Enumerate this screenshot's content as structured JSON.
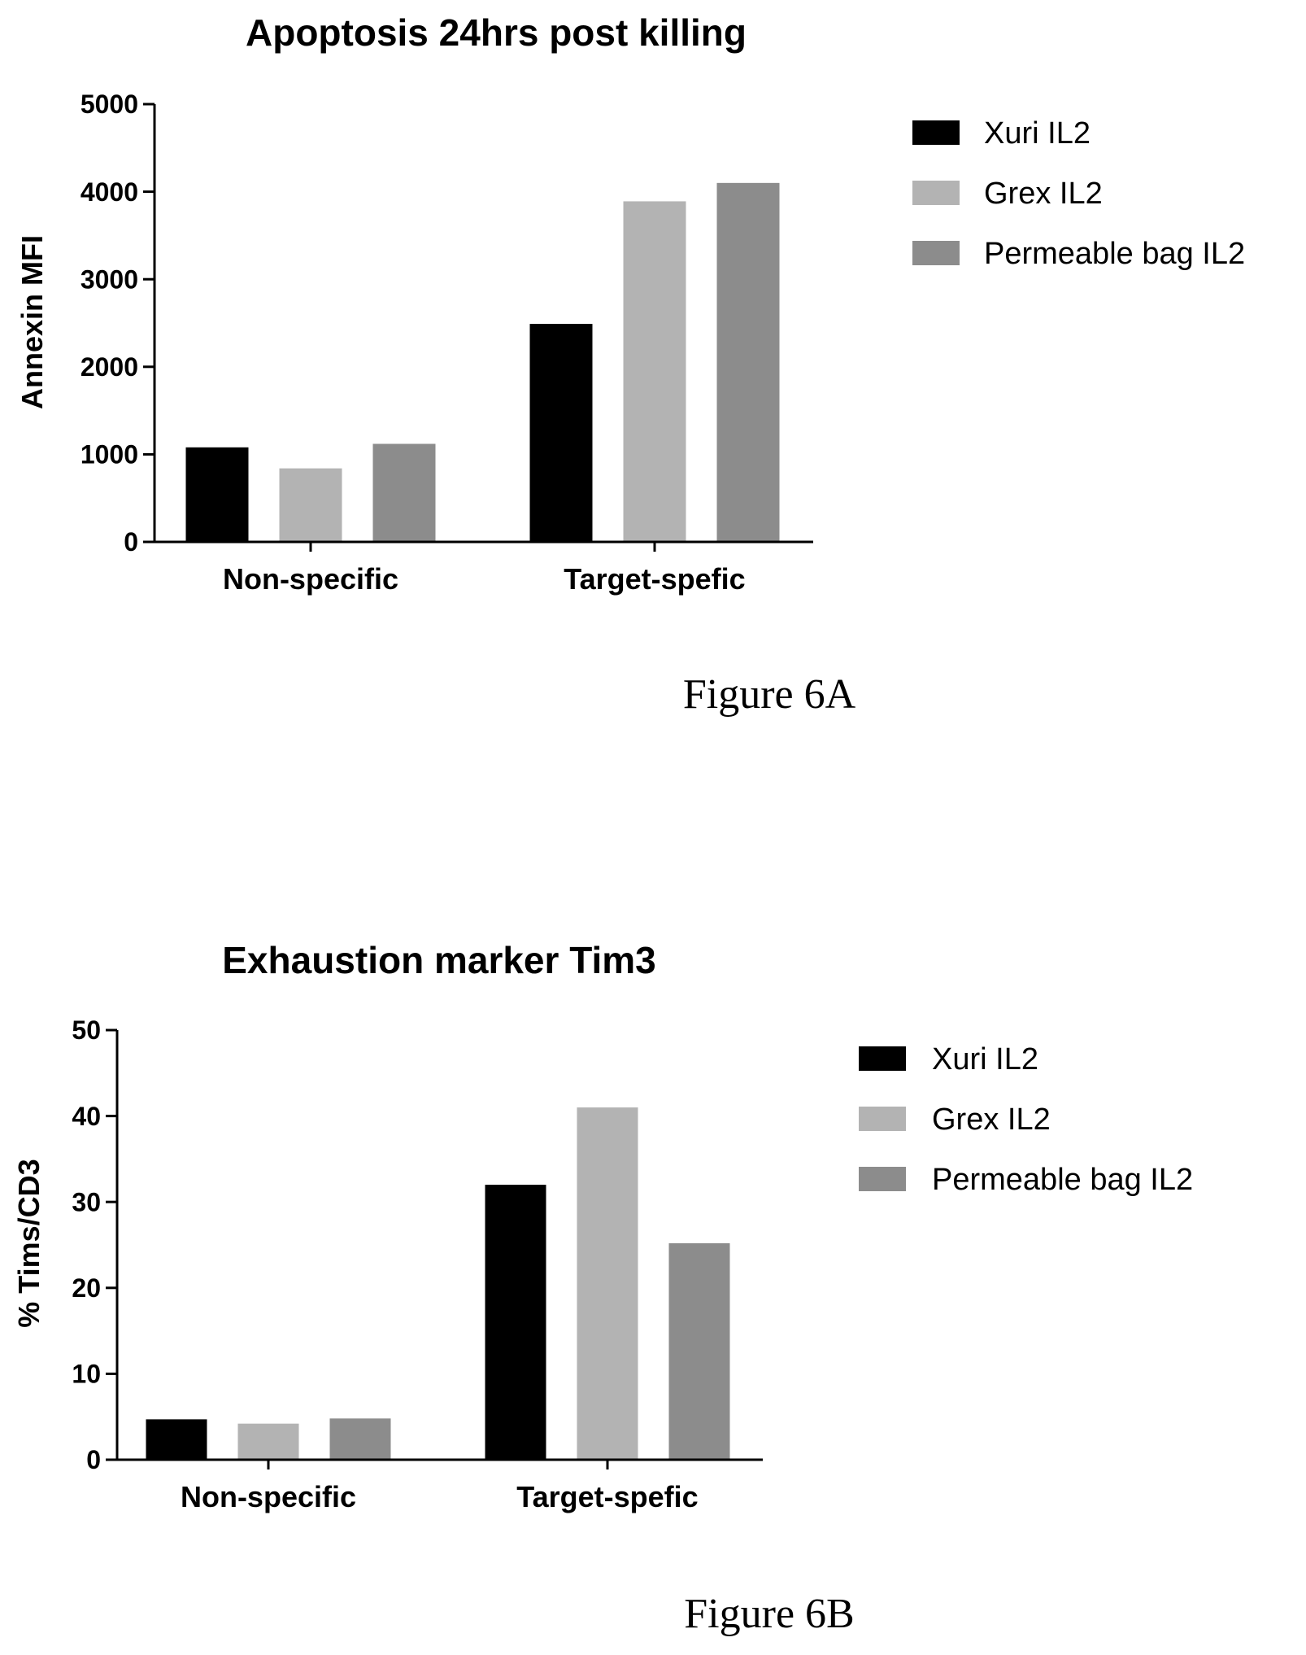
{
  "figures": [
    {
      "caption": "Figure 6A"
    },
    {
      "caption": "Figure 6B"
    }
  ],
  "chart_data": [
    {
      "type": "bar",
      "title": "Apoptosis 24hrs post killing",
      "xlabel": "",
      "ylabel": "Annexin MFI",
      "categories": [
        "Non-specific",
        "Target-spefic"
      ],
      "ylim": [
        0,
        5000
      ],
      "yticks": [
        "0",
        "1000",
        "2000",
        "3000",
        "4000",
        "5000"
      ],
      "legend_position": "right",
      "grid": false,
      "series": [
        {
          "name": "Xuri IL2",
          "color": "#000000",
          "values": [
            1080,
            2490
          ]
        },
        {
          "name": "Grex IL2",
          "color": "#b3b3b3",
          "values": [
            840,
            3890
          ]
        },
        {
          "name": "Permeable bag IL2",
          "color": "#8c8c8c",
          "values": [
            1120,
            4100
          ]
        }
      ]
    },
    {
      "type": "bar",
      "title": "Exhaustion marker Tim3",
      "xlabel": "",
      "ylabel": "% Tims/CD3",
      "categories": [
        "Non-specific",
        "Target-spefic"
      ],
      "ylim": [
        0,
        50
      ],
      "yticks": [
        "0",
        "10",
        "20",
        "30",
        "40",
        "50"
      ],
      "legend_position": "right",
      "grid": false,
      "series": [
        {
          "name": "Xuri IL2",
          "color": "#000000",
          "values": [
            4.7,
            32
          ]
        },
        {
          "name": "Grex IL2",
          "color": "#b3b3b3",
          "values": [
            4.2,
            41
          ]
        },
        {
          "name": "Permeable bag IL2",
          "color": "#8c8c8c",
          "values": [
            4.8,
            25.2
          ]
        }
      ]
    }
  ]
}
